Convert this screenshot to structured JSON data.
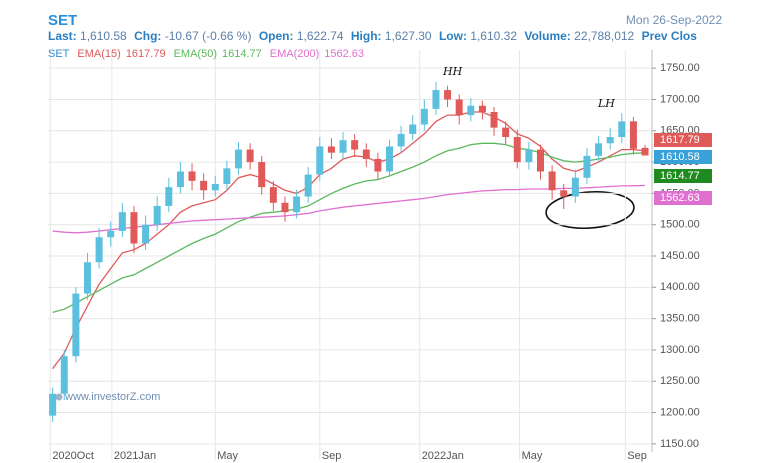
{
  "header": {
    "symbol": "SET",
    "date": "Mon 26-Sep-2022",
    "stats": [
      {
        "label": "Last:",
        "value": "1,610.58"
      },
      {
        "label": "Chg:",
        "value": "-10.67 (-0.66 %)"
      },
      {
        "label": "Open:",
        "value": "1,622.74"
      },
      {
        "label": "High:",
        "value": "1,627.30"
      },
      {
        "label": "Low:",
        "value": "1,610.32"
      },
      {
        "label": "Volume:",
        "value": "22,788,012"
      },
      {
        "label": "Prev Clos",
        "value": null
      }
    ]
  },
  "chart_data": {
    "type": "candlestick",
    "candles": {
      "name": "SET",
      "up_color": "#5bc0de",
      "down_color": "#e05a5a",
      "badge_color": "#3aa0d8",
      "open": [
        1195,
        1230,
        1290,
        1390,
        1440,
        1480,
        1490,
        1520,
        1470,
        1500,
        1530,
        1560,
        1585,
        1570,
        1555,
        1565,
        1590,
        1620,
        1600,
        1560,
        1535,
        1520,
        1545,
        1580,
        1625,
        1615,
        1635,
        1620,
        1605,
        1585,
        1625,
        1645,
        1660,
        1685,
        1715,
        1700,
        1675,
        1690,
        1680,
        1655,
        1640,
        1600,
        1620,
        1585,
        1555,
        1545,
        1575,
        1610,
        1630,
        1640,
        1665,
        1622.74
      ],
      "high": [
        1240,
        1300,
        1400,
        1455,
        1495,
        1505,
        1535,
        1530,
        1515,
        1545,
        1575,
        1600,
        1598,
        1582,
        1578,
        1602,
        1632,
        1630,
        1610,
        1570,
        1545,
        1556,
        1592,
        1640,
        1638,
        1648,
        1645,
        1630,
        1615,
        1636,
        1658,
        1675,
        1700,
        1728,
        1722,
        1708,
        1702,
        1698,
        1688,
        1665,
        1652,
        1632,
        1628,
        1595,
        1565,
        1588,
        1622,
        1642,
        1655,
        1678,
        1672,
        1627.3
      ],
      "low": [
        1185,
        1220,
        1280,
        1380,
        1430,
        1465,
        1480,
        1455,
        1460,
        1490,
        1520,
        1550,
        1555,
        1540,
        1545,
        1555,
        1580,
        1588,
        1548,
        1522,
        1505,
        1510,
        1535,
        1570,
        1605,
        1605,
        1608,
        1592,
        1572,
        1578,
        1615,
        1635,
        1650,
        1675,
        1688,
        1660,
        1665,
        1668,
        1642,
        1628,
        1590,
        1588,
        1572,
        1540,
        1525,
        1535,
        1565,
        1600,
        1620,
        1630,
        1612,
        1610.32
      ],
      "close": [
        1230,
        1290,
        1390,
        1440,
        1480,
        1490,
        1520,
        1470,
        1500,
        1530,
        1560,
        1585,
        1570,
        1555,
        1565,
        1590,
        1620,
        1600,
        1560,
        1535,
        1520,
        1545,
        1580,
        1625,
        1615,
        1635,
        1620,
        1605,
        1585,
        1625,
        1645,
        1660,
        1685,
        1715,
        1700,
        1675,
        1690,
        1680,
        1655,
        1640,
        1600,
        1620,
        1585,
        1555,
        1545,
        1575,
        1610,
        1630,
        1640,
        1665,
        1621.25,
        1610.58
      ]
    },
    "series": [
      {
        "name": "EMA(15)",
        "color": "#e05a5a",
        "values": [
          1270,
          1295,
          1335,
          1370,
          1405,
          1430,
          1455,
          1460,
          1470,
          1485,
          1500,
          1520,
          1530,
          1535,
          1540,
          1555,
          1575,
          1580,
          1575,
          1565,
          1555,
          1550,
          1560,
          1580,
          1590,
          1605,
          1610,
          1608,
          1600,
          1605,
          1615,
          1630,
          1645,
          1665,
          1675,
          1675,
          1680,
          1680,
          1672,
          1662,
          1645,
          1638,
          1625,
          1605,
          1590,
          1585,
          1592,
          1600,
          1610,
          1620,
          1620,
          1617.79
        ]
      },
      {
        "name": "EMA(50)",
        "color": "#5cb85c",
        "badge_color": "#1f8a1f",
        "values": [
          1360,
          1365,
          1375,
          1385,
          1395,
          1405,
          1415,
          1420,
          1430,
          1440,
          1450,
          1460,
          1470,
          1478,
          1485,
          1495,
          1505,
          1512,
          1518,
          1520,
          1522,
          1525,
          1530,
          1540,
          1550,
          1558,
          1565,
          1570,
          1572,
          1578,
          1585,
          1592,
          1600,
          1610,
          1618,
          1622,
          1628,
          1630,
          1630,
          1628,
          1622,
          1620,
          1615,
          1608,
          1602,
          1600,
          1602,
          1605,
          1608,
          1612,
          1614,
          1614.77
        ]
      },
      {
        "name": "EMA(200)",
        "color": "#e070d0",
        "values": [
          1490,
          1488,
          1487,
          1488,
          1490,
          1492,
          1494,
          1496,
          1498,
          1500,
          1502,
          1504,
          1506,
          1507,
          1508,
          1509,
          1510,
          1511,
          1512,
          1513,
          1514,
          1516,
          1518,
          1522,
          1525,
          1528,
          1530,
          1532,
          1534,
          1536,
          1538,
          1540,
          1542,
          1545,
          1548,
          1550,
          1552,
          1554,
          1555,
          1556,
          1556,
          1557,
          1557,
          1557,
          1558,
          1558,
          1559,
          1560,
          1561,
          1562,
          1562.3,
          1562.63
        ]
      }
    ],
    "xlim": [
      -0.4,
      51.6
    ],
    "xticks": [
      {
        "value": -0.2,
        "label": "2020Oct"
      },
      {
        "value": 5.1,
        "label": "2021Jan"
      },
      {
        "value": 14,
        "label": "May"
      },
      {
        "value": 23,
        "label": "Sep"
      },
      {
        "value": 31.6,
        "label": "2022Jan"
      },
      {
        "value": 40.2,
        "label": "May"
      },
      {
        "value": 49.3,
        "label": "Sep"
      }
    ],
    "ylim": [
      1137,
      1779
    ],
    "yticks": [
      {
        "value": 1150,
        "label": "1150.00"
      },
      {
        "value": 1200,
        "label": "1200.00"
      },
      {
        "value": 1250,
        "label": "1250.00"
      },
      {
        "value": 1300,
        "label": "1300.00"
      },
      {
        "value": 1350,
        "label": "1350.00"
      },
      {
        "value": 1400,
        "label": "1400.00"
      },
      {
        "value": 1450,
        "label": "1450.00"
      },
      {
        "value": 1500,
        "label": "1500.00"
      },
      {
        "value": 1550,
        "label": "1550.00"
      },
      {
        "value": 1600,
        "label": "1600.00"
      },
      {
        "value": 1650,
        "label": "1650.00"
      },
      {
        "value": 1700,
        "label": "1700.00"
      },
      {
        "value": 1750,
        "label": "1750.00"
      }
    ],
    "grid": true,
    "annotations": [
      "HH",
      "LH"
    ],
    "watermark": "www.investorZ.com"
  }
}
